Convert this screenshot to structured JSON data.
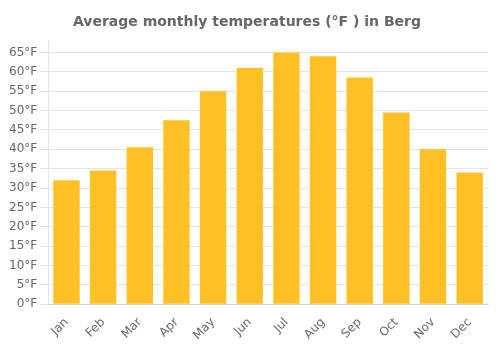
{
  "chart_data": {
    "type": "bar",
    "title": "Average monthly temperatures (°F ) in Berg",
    "categories": [
      "Jan",
      "Feb",
      "Mar",
      "Apr",
      "May",
      "Jun",
      "Jul",
      "Aug",
      "Sep",
      "Oct",
      "Nov",
      "Dec"
    ],
    "values": [
      32,
      34.5,
      40.5,
      47.5,
      55,
      61,
      65,
      64,
      58.5,
      49.5,
      40,
      34
    ],
    "color": "#FFC125",
    "ylim": [
      0,
      68
    ],
    "yticks": [
      {
        "value": 0,
        "label": "0°F"
      },
      {
        "value": 5,
        "label": "5°F"
      },
      {
        "value": 10,
        "label": "10°F"
      },
      {
        "value": 15,
        "label": "15°F"
      },
      {
        "value": 20,
        "label": "20°F"
      },
      {
        "value": 25,
        "label": "25°F"
      },
      {
        "value": 30,
        "label": "30°F"
      },
      {
        "value": 35,
        "label": "35°F"
      },
      {
        "value": 40,
        "label": "40°F"
      },
      {
        "value": 45,
        "label": "45°F"
      },
      {
        "value": 50,
        "label": "50°F"
      },
      {
        "value": 55,
        "label": "55°F"
      },
      {
        "value": 60,
        "label": "60°F"
      },
      {
        "value": 65,
        "label": "65°F"
      }
    ],
    "grid": true
  }
}
